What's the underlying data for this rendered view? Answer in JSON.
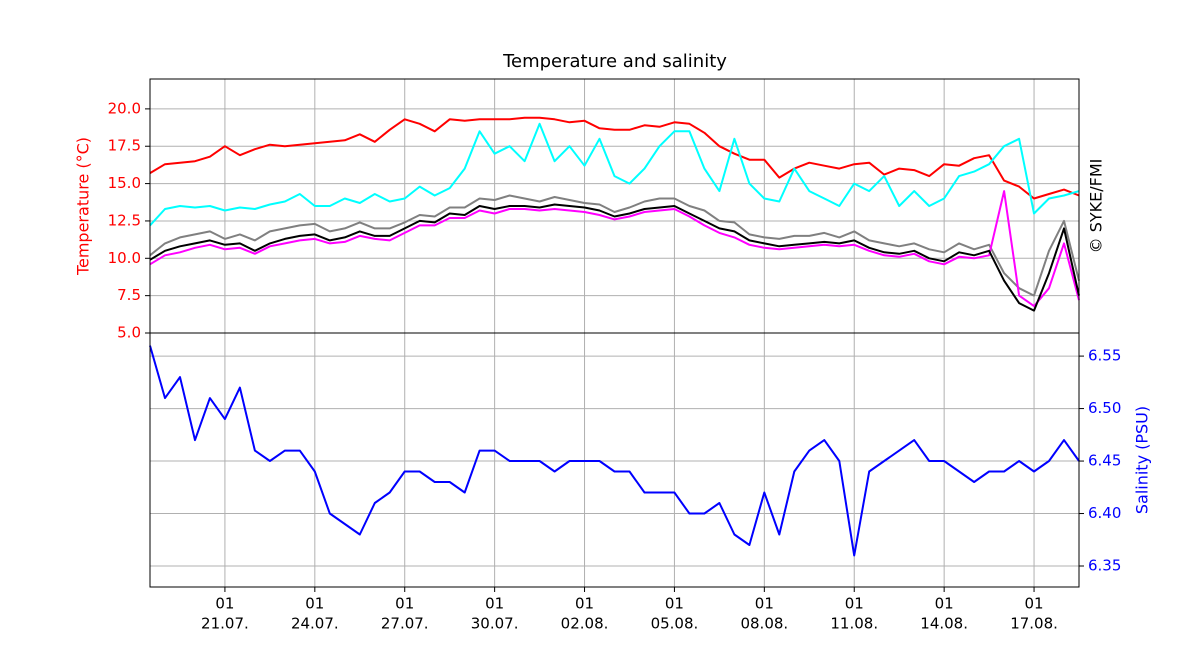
{
  "chart_data": {
    "type": "line",
    "title": "Temperature and salinity",
    "ylabel": "Temperature (°C)",
    "y2label": "Salinity (PSU)",
    "annotation": "© SYKE/FMI",
    "x": [
      "18.07. 13",
      "19.07. 01",
      "19.07. 13",
      "20.07. 01",
      "20.07. 13",
      "21.07. 01",
      "21.07. 13",
      "22.07. 01",
      "22.07. 13",
      "23.07. 01",
      "23.07. 13",
      "24.07. 01",
      "24.07. 13",
      "25.07. 01",
      "25.07. 13",
      "26.07. 01",
      "26.07. 13",
      "27.07. 01",
      "27.07. 13",
      "28.07. 01",
      "28.07. 13",
      "29.07. 01",
      "29.07. 13",
      "30.07. 01",
      "30.07. 13",
      "31.07. 01",
      "31.07. 13",
      "01.08. 01",
      "01.08. 13",
      "02.08. 01",
      "02.08. 13",
      "03.08. 01",
      "03.08. 13",
      "04.08. 01",
      "04.08. 13",
      "05.08. 01",
      "05.08. 13",
      "06.08. 01",
      "06.08. 13",
      "07.08. 01",
      "07.08. 13",
      "08.08. 01",
      "08.08. 13",
      "09.08. 01",
      "09.08. 13",
      "10.08. 01",
      "10.08. 13",
      "11.08. 01",
      "11.08. 13",
      "12.08. 01",
      "12.08. 13",
      "13.08. 01",
      "13.08. 13",
      "14.08. 01",
      "14.08. 13",
      "15.08. 01",
      "15.08. 13",
      "16.08. 01",
      "16.08. 13",
      "17.08. 01",
      "17.08. 13",
      "18.08. 01",
      "18.08. 13"
    ],
    "xlim": [
      "18.07. 13",
      "18.08. 13"
    ],
    "xticks": [
      {
        "value": "21.07. 01",
        "label": [
          "01",
          "21.07."
        ]
      },
      {
        "value": "24.07. 01",
        "label": [
          "01",
          "24.07."
        ]
      },
      {
        "value": "27.07. 01",
        "label": [
          "01",
          "27.07."
        ]
      },
      {
        "value": "30.07. 01",
        "label": [
          "01",
          "30.07."
        ]
      },
      {
        "value": "02.08. 01",
        "label": [
          "01",
          "02.08."
        ]
      },
      {
        "value": "05.08. 01",
        "label": [
          "01",
          "05.08."
        ]
      },
      {
        "value": "08.08. 01",
        "label": [
          "01",
          "08.08."
        ]
      },
      {
        "value": "11.08. 01",
        "label": [
          "01",
          "11.08."
        ]
      },
      {
        "value": "14.08. 01",
        "label": [
          "01",
          "14.08."
        ]
      },
      {
        "value": "17.08. 01",
        "label": [
          "01",
          "17.08."
        ]
      }
    ],
    "ylim": [
      5,
      22
    ],
    "yticks": [
      {
        "value": 5,
        "label": "5.0"
      },
      7.5,
      {
        "value": 10,
        "label": "10.0"
      },
      12.5,
      {
        "value": 15,
        "label": "15.0"
      },
      17.5,
      {
        "value": 20,
        "label": "20.0"
      }
    ],
    "y2lim": [
      6.33,
      6.572
    ],
    "y2ticks": [
      6.35,
      {
        "value": 6.4,
        "label": "6.40"
      },
      6.45,
      {
        "value": 6.5,
        "label": "6.50"
      },
      6.55
    ],
    "grid": true,
    "series": [
      {
        "color": "#ff0000",
        "values": [
          15.7,
          16.3,
          16.4,
          16.5,
          16.8,
          17.5,
          16.9,
          17.3,
          17.6,
          17.5,
          17.6,
          17.7,
          17.8,
          17.9,
          18.3,
          17.8,
          18.6,
          19.3,
          19.0,
          18.5,
          19.3,
          19.2,
          19.3,
          19.3,
          19.3,
          19.4,
          19.4,
          19.3,
          19.1,
          19.2,
          18.7,
          18.6,
          18.6,
          18.9,
          18.8,
          19.1,
          19.0,
          18.4,
          17.5,
          17.0,
          16.6,
          16.6,
          15.4,
          16.0,
          16.4,
          16.2,
          16.0,
          16.3,
          16.4,
          15.6,
          16.0,
          15.9,
          15.5,
          16.3,
          16.2,
          16.7,
          16.9,
          15.2,
          14.8,
          14.0,
          14.3,
          14.6,
          14.2
        ]
      },
      {
        "color": "#00ffff",
        "values": [
          12.2,
          13.3,
          13.5,
          13.4,
          13.5,
          13.2,
          13.4,
          13.3,
          13.6,
          13.8,
          14.3,
          13.5,
          13.5,
          14.0,
          13.7,
          14.3,
          13.8,
          14.0,
          14.8,
          14.2,
          14.7,
          16.0,
          18.5,
          17.0,
          17.5,
          16.5,
          19.0,
          16.5,
          17.5,
          16.2,
          18.0,
          15.5,
          15.0,
          16.0,
          17.5,
          18.5,
          18.5,
          16.0,
          14.5,
          18.0,
          15.0,
          14.0,
          13.8,
          16.0,
          14.5,
          14.0,
          13.5,
          15.0,
          14.5,
          15.5,
          13.5,
          14.5,
          13.5,
          14.0,
          15.5,
          15.8,
          16.3,
          17.5,
          18.0,
          13.0,
          14.0,
          14.2,
          14.5
        ]
      },
      {
        "color": "#808080",
        "values": [
          10.2,
          11.0,
          11.4,
          11.6,
          11.8,
          11.3,
          11.6,
          11.2,
          11.8,
          12.0,
          12.2,
          12.3,
          11.8,
          12.0,
          12.4,
          12.0,
          12.0,
          12.4,
          12.9,
          12.8,
          13.4,
          13.4,
          14.0,
          13.9,
          14.2,
          14.0,
          13.8,
          14.1,
          13.9,
          13.7,
          13.6,
          13.1,
          13.4,
          13.8,
          14.0,
          14.0,
          13.5,
          13.2,
          12.5,
          12.4,
          11.6,
          11.4,
          11.3,
          11.5,
          11.5,
          11.7,
          11.4,
          11.8,
          11.2,
          11.0,
          10.8,
          11.0,
          10.6,
          10.4,
          11.0,
          10.6,
          10.9,
          9.0,
          8.0,
          7.5,
          10.5,
          12.5,
          8.5
        ]
      },
      {
        "color": "#ff00ff",
        "values": [
          9.6,
          10.2,
          10.4,
          10.7,
          10.9,
          10.6,
          10.7,
          10.3,
          10.8,
          11.0,
          11.2,
          11.3,
          11.0,
          11.1,
          11.5,
          11.3,
          11.2,
          11.7,
          12.2,
          12.2,
          12.7,
          12.7,
          13.2,
          13.0,
          13.3,
          13.3,
          13.2,
          13.3,
          13.2,
          13.1,
          12.9,
          12.6,
          12.8,
          13.1,
          13.2,
          13.3,
          12.8,
          12.2,
          11.7,
          11.4,
          10.9,
          10.7,
          10.6,
          10.7,
          10.8,
          10.9,
          10.8,
          10.9,
          10.5,
          10.2,
          10.1,
          10.3,
          9.8,
          9.6,
          10.1,
          10.0,
          10.2,
          14.5,
          7.5,
          6.8,
          8.0,
          11.0,
          7.2
        ]
      },
      {
        "color": "#000000",
        "values": [
          9.9,
          10.5,
          10.8,
          11.0,
          11.2,
          10.9,
          11.0,
          10.5,
          11.0,
          11.3,
          11.5,
          11.6,
          11.2,
          11.4,
          11.8,
          11.5,
          11.5,
          12.0,
          12.5,
          12.4,
          13.0,
          12.9,
          13.5,
          13.3,
          13.5,
          13.5,
          13.4,
          13.6,
          13.5,
          13.4,
          13.2,
          12.8,
          13.0,
          13.3,
          13.4,
          13.5,
          13.0,
          12.5,
          12.0,
          11.8,
          11.2,
          11.0,
          10.8,
          10.9,
          11.0,
          11.1,
          11.0,
          11.2,
          10.7,
          10.4,
          10.3,
          10.5,
          10.0,
          9.8,
          10.4,
          10.2,
          10.5,
          8.5,
          7.0,
          6.5,
          9.0,
          12.0,
          7.5
        ]
      },
      {
        "color": "#0000ff",
        "axis": "y2",
        "values": [
          6.56,
          6.51,
          6.53,
          6.47,
          6.51,
          6.49,
          6.52,
          6.46,
          6.45,
          6.46,
          6.46,
          6.44,
          6.4,
          6.39,
          6.38,
          6.41,
          6.42,
          6.44,
          6.44,
          6.43,
          6.43,
          6.42,
          6.46,
          6.46,
          6.45,
          6.45,
          6.45,
          6.44,
          6.45,
          6.45,
          6.45,
          6.44,
          6.44,
          6.42,
          6.42,
          6.42,
          6.4,
          6.4,
          6.41,
          6.38,
          6.37,
          6.42,
          6.38,
          6.44,
          6.46,
          6.47,
          6.45,
          6.36,
          6.44,
          6.45,
          6.46,
          6.47,
          6.45,
          6.45,
          6.44,
          6.43,
          6.44,
          6.44,
          6.45,
          6.44,
          6.45,
          6.47,
          6.45
        ]
      }
    ]
  }
}
